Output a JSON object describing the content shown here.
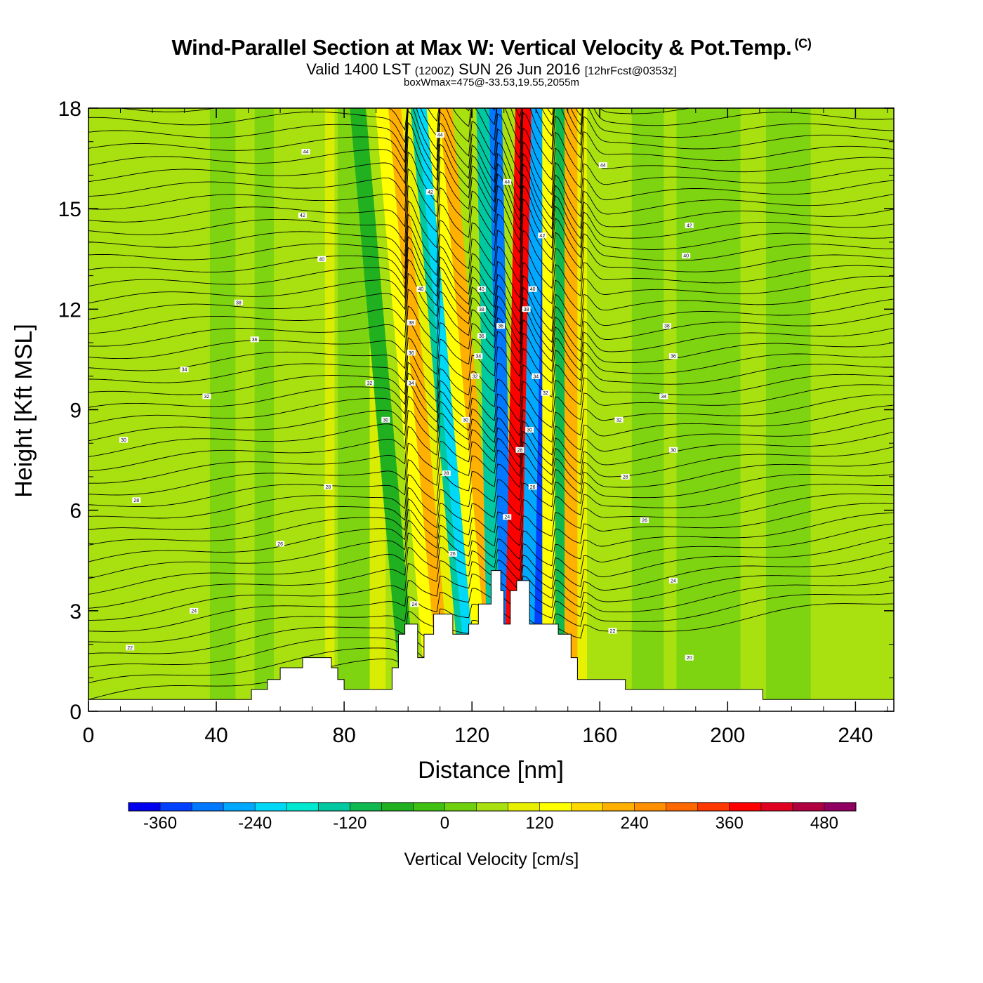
{
  "title": {
    "main": "Wind-Parallel Section at Max W: Vertical Velocity & Pot.Temp.",
    "mark": "(C)",
    "valid_prefix": "Valid 1400 LST",
    "valid_utc": "(1200Z)",
    "valid_date": "SUN 26 Jun 2016",
    "forecast": "[12hrFcst@0353z]",
    "box": "boxWmax=475@-33.53,19.55,2055m"
  },
  "chart_data": {
    "type": "heatmap",
    "xlabel": "Distance [nm]",
    "ylabel": "Height [Kft MSL]",
    "xlim": [
      0,
      252
    ],
    "ylim": [
      0,
      18
    ],
    "x_ticks": [
      0,
      40,
      80,
      120,
      160,
      200,
      240
    ],
    "y_ticks": [
      0,
      3,
      6,
      9,
      12,
      15,
      18
    ],
    "field": "Vertical Velocity",
    "contours": "Potential Temperature",
    "colorbar": {
      "title": "Vertical Velocity [cm/s]",
      "tick_labels": [
        "-360",
        "-240",
        "-120",
        "0",
        "120",
        "240",
        "360",
        "480"
      ],
      "tick_values": [
        -360,
        -240,
        -120,
        0,
        120,
        240,
        360,
        480
      ],
      "min": -400,
      "max": 520,
      "step": 40,
      "colors": [
        "#0000f0",
        "#0040ff",
        "#0078ff",
        "#00a8ff",
        "#00d8f8",
        "#00e8d0",
        "#00c8a0",
        "#10b850",
        "#20b020",
        "#40c010",
        "#70d010",
        "#a8e010",
        "#e8f000",
        "#ffff00",
        "#ffd800",
        "#ffb000",
        "#ff9000",
        "#ff6800",
        "#ff3800",
        "#ff0000",
        "#e00020",
        "#b00040",
        "#900060"
      ]
    },
    "velocity_bands": [
      {
        "x_base": 98,
        "width": 5,
        "slope": 0.9,
        "value": -80
      },
      {
        "x_base": 103,
        "width": 3,
        "slope": 0.9,
        "value": 40
      },
      {
        "x_base": 106,
        "width": 4,
        "slope": 0.9,
        "value": 130
      },
      {
        "x_base": 110,
        "width": 4,
        "slope": 0.9,
        "value": 230
      },
      {
        "x_base": 114,
        "width": 3,
        "slope": 0.9,
        "value": 90
      },
      {
        "x_base": 117,
        "width": 3,
        "slope": 0.9,
        "value": -140
      },
      {
        "x_base": 119,
        "width": 4,
        "slope": 0.9,
        "value": -240
      },
      {
        "x_base": 122,
        "width": 4,
        "slope": 0.9,
        "value": 140
      },
      {
        "x_base": 126,
        "width": 4,
        "slope": 0.9,
        "value": 230
      },
      {
        "x_base": 125,
        "width": 4,
        "slope": 0.2,
        "value": -150
      },
      {
        "x_base": 129,
        "width": 4,
        "slope": 0.2,
        "value": -300
      },
      {
        "x_base": 132,
        "width": 3,
        "slope": -0.2,
        "value": 480
      },
      {
        "x_base": 130,
        "width": 5,
        "slope": -0.2,
        "value": 360
      },
      {
        "x_base": 135,
        "width": 4,
        "slope": -0.2,
        "value": -260
      },
      {
        "x_base": 139,
        "width": 3,
        "slope": -0.2,
        "value": -360
      },
      {
        "x_base": 142,
        "width": 4,
        "slope": 0,
        "value": 150
      },
      {
        "x_base": 146,
        "width": 3,
        "slope": 0,
        "value": -120
      },
      {
        "x_base": 149,
        "width": 4,
        "slope": 0,
        "value": 200
      },
      {
        "x_base": 153,
        "width": 3,
        "slope": 0,
        "value": 80
      }
    ],
    "isotherm_labels": [
      {
        "x": 68,
        "y": 16.7,
        "text": "44"
      },
      {
        "x": 110,
        "y": 17.2,
        "text": "44"
      },
      {
        "x": 131,
        "y": 15.8,
        "text": "44"
      },
      {
        "x": 161,
        "y": 16.3,
        "text": "44"
      },
      {
        "x": 67,
        "y": 14.8,
        "text": "42"
      },
      {
        "x": 107,
        "y": 15.5,
        "text": "42"
      },
      {
        "x": 142,
        "y": 14.2,
        "text": "42"
      },
      {
        "x": 188,
        "y": 14.5,
        "text": "42"
      },
      {
        "x": 73,
        "y": 13.5,
        "text": "40"
      },
      {
        "x": 104,
        "y": 12.6,
        "text": "40"
      },
      {
        "x": 123,
        "y": 12.6,
        "text": "40"
      },
      {
        "x": 139,
        "y": 12.6,
        "text": "40"
      },
      {
        "x": 187,
        "y": 13.6,
        "text": "40"
      },
      {
        "x": 47,
        "y": 12.2,
        "text": "38"
      },
      {
        "x": 101,
        "y": 11.6,
        "text": "38"
      },
      {
        "x": 123,
        "y": 12.0,
        "text": "38"
      },
      {
        "x": 137,
        "y": 12.0,
        "text": "38"
      },
      {
        "x": 181,
        "y": 11.5,
        "text": "38"
      },
      {
        "x": 52,
        "y": 11.1,
        "text": "36"
      },
      {
        "x": 101,
        "y": 10.7,
        "text": "36"
      },
      {
        "x": 123,
        "y": 11.2,
        "text": "36"
      },
      {
        "x": 129,
        "y": 11.5,
        "text": "36"
      },
      {
        "x": 183,
        "y": 10.6,
        "text": "36"
      },
      {
        "x": 30,
        "y": 10.2,
        "text": "34"
      },
      {
        "x": 101,
        "y": 9.8,
        "text": "34"
      },
      {
        "x": 122,
        "y": 10.6,
        "text": "34"
      },
      {
        "x": 140,
        "y": 10.0,
        "text": "34"
      },
      {
        "x": 180,
        "y": 9.4,
        "text": "34"
      },
      {
        "x": 37,
        "y": 9.4,
        "text": "32"
      },
      {
        "x": 88,
        "y": 9.8,
        "text": "32"
      },
      {
        "x": 121,
        "y": 10.0,
        "text": "32"
      },
      {
        "x": 143,
        "y": 9.5,
        "text": "32"
      },
      {
        "x": 166,
        "y": 8.7,
        "text": "32"
      },
      {
        "x": 11,
        "y": 8.1,
        "text": "30"
      },
      {
        "x": 93,
        "y": 8.7,
        "text": "30"
      },
      {
        "x": 118,
        "y": 8.7,
        "text": "30"
      },
      {
        "x": 138,
        "y": 8.4,
        "text": "30"
      },
      {
        "x": 183,
        "y": 7.8,
        "text": "30"
      },
      {
        "x": 15,
        "y": 6.3,
        "text": "28"
      },
      {
        "x": 75,
        "y": 6.7,
        "text": "28"
      },
      {
        "x": 112,
        "y": 7.1,
        "text": "28"
      },
      {
        "x": 135,
        "y": 7.8,
        "text": "28"
      },
      {
        "x": 168,
        "y": 7.0,
        "text": "28"
      },
      {
        "x": 60,
        "y": 5.0,
        "text": "26"
      },
      {
        "x": 114,
        "y": 4.7,
        "text": "26"
      },
      {
        "x": 139,
        "y": 6.7,
        "text": "26"
      },
      {
        "x": 174,
        "y": 5.7,
        "text": "26"
      },
      {
        "x": 33,
        "y": 3.0,
        "text": "24"
      },
      {
        "x": 102,
        "y": 3.2,
        "text": "24"
      },
      {
        "x": 131,
        "y": 5.8,
        "text": "24"
      },
      {
        "x": 183,
        "y": 3.9,
        "text": "24"
      },
      {
        "x": 13,
        "y": 1.9,
        "text": "22"
      },
      {
        "x": 164,
        "y": 2.4,
        "text": "22"
      },
      {
        "x": 188,
        "y": 1.6,
        "text": "20"
      }
    ],
    "terrain": [
      [
        0,
        0.35
      ],
      [
        51,
        0.35
      ],
      [
        51,
        0.65
      ],
      [
        56,
        0.65
      ],
      [
        56,
        0.95
      ],
      [
        60,
        0.95
      ],
      [
        60,
        1.3
      ],
      [
        67,
        1.3
      ],
      [
        67,
        1.6
      ],
      [
        76,
        1.6
      ],
      [
        76,
        1.3
      ],
      [
        78,
        1.3
      ],
      [
        78,
        0.95
      ],
      [
        80,
        0.95
      ],
      [
        80,
        0.65
      ],
      [
        95,
        0.65
      ],
      [
        95,
        1.3
      ],
      [
        97,
        1.3
      ],
      [
        97,
        2.3
      ],
      [
        99,
        2.3
      ],
      [
        99,
        2.6
      ],
      [
        103,
        2.6
      ],
      [
        103,
        1.6
      ],
      [
        105,
        1.6
      ],
      [
        105,
        2.3
      ],
      [
        108,
        2.3
      ],
      [
        108,
        2.9
      ],
      [
        114,
        2.9
      ],
      [
        114,
        2.3
      ],
      [
        119,
        2.3
      ],
      [
        119,
        2.6
      ],
      [
        122,
        2.6
      ],
      [
        122,
        3.2
      ],
      [
        126,
        3.2
      ],
      [
        126,
        4.2
      ],
      [
        129,
        4.2
      ],
      [
        129,
        3.6
      ],
      [
        130,
        3.6
      ],
      [
        130,
        2.6
      ],
      [
        132,
        2.6
      ],
      [
        132,
        3.6
      ],
      [
        134,
        3.6
      ],
      [
        134,
        3.9
      ],
      [
        138,
        3.9
      ],
      [
        138,
        2.6
      ],
      [
        147,
        2.6
      ],
      [
        147,
        2.3
      ],
      [
        151,
        2.3
      ],
      [
        151,
        1.6
      ],
      [
        153,
        1.6
      ],
      [
        153,
        0.95
      ],
      [
        168,
        0.95
      ],
      [
        168,
        0.65
      ],
      [
        211,
        0.65
      ],
      [
        211,
        0.35
      ],
      [
        252,
        0.35
      ]
    ]
  }
}
